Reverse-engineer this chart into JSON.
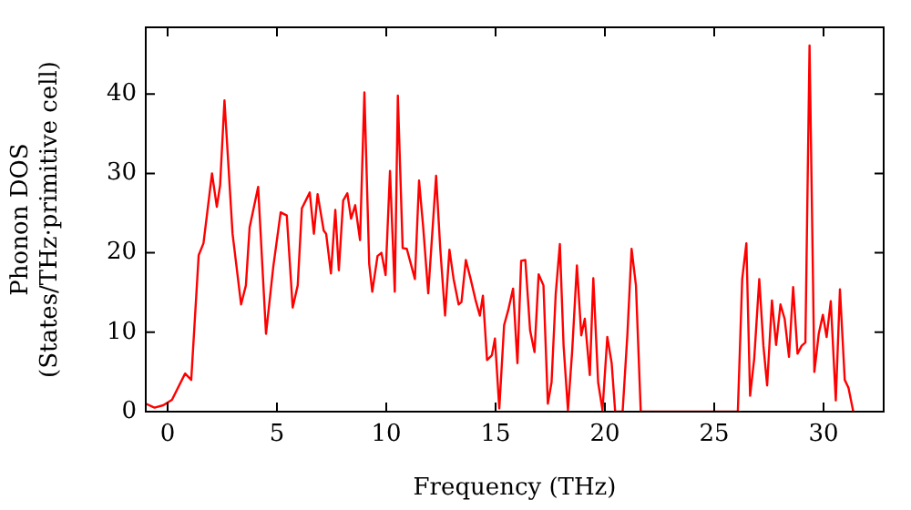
{
  "chart_data": {
    "type": "line",
    "xlabel": "Frequency (THz)",
    "ylabel": "Phonon DOS\n(States/THz·primitive cell)",
    "xlim": [
      -1,
      32.75
    ],
    "ylim": [
      0,
      48.4
    ],
    "xticks": [
      0,
      5,
      10,
      15,
      20,
      25,
      30
    ],
    "yticks": [
      0,
      10,
      20,
      30,
      40
    ],
    "grid": false,
    "legend": false,
    "marker": "none",
    "line_style": "solid",
    "series": [
      {
        "color": "#ff0000",
        "x": [
          -1,
          -0.6,
          -0.2,
          0.2,
          0.8,
          1.08,
          1.42,
          1.64,
          2.03,
          2.25,
          2.4,
          2.6,
          2.97,
          3.36,
          3.58,
          3.75,
          4.14,
          4.5,
          4.83,
          5.17,
          5.45,
          5.72,
          5.95,
          6.14,
          6.5,
          6.69,
          6.86,
          7.14,
          7.25,
          7.47,
          7.67,
          7.83,
          8.03,
          8.22,
          8.39,
          8.58,
          8.8,
          9.0,
          9.22,
          9.36,
          9.6,
          9.78,
          9.97,
          10.17,
          10.39,
          10.53,
          10.75,
          10.94,
          11.31,
          11.5,
          11.69,
          11.92,
          12.28,
          12.47,
          12.69,
          12.89,
          13.08,
          13.31,
          13.44,
          13.64,
          13.86,
          14.08,
          14.28,
          14.42,
          14.61,
          14.83,
          14.97,
          15.17,
          15.39,
          15.58,
          15.8,
          16.0,
          16.17,
          16.36,
          16.58,
          16.78,
          16.97,
          17.19,
          17.39,
          17.56,
          17.75,
          17.94,
          18.11,
          18.31,
          18.5,
          18.72,
          18.92,
          19.08,
          19.31,
          19.47,
          19.69,
          19.89,
          20.11,
          20.31,
          20.47,
          20.81,
          21.03,
          21.22,
          21.42,
          21.64,
          26.08,
          26.28,
          26.47,
          26.64,
          26.83,
          27.06,
          27.25,
          27.42,
          27.64,
          27.83,
          28.03,
          28.22,
          28.42,
          28.61,
          28.81,
          29.0,
          29.17,
          29.36,
          29.58,
          29.78,
          29.97,
          30.14,
          30.33,
          30.56,
          30.75,
          30.97,
          31.14,
          31.36
        ],
        "values": [
          1.0,
          0.5,
          0.8,
          1.5,
          4.8,
          4.0,
          19.7,
          21.2,
          30,
          25.8,
          28.5,
          39.2,
          22.4,
          13.5,
          15.9,
          23.2,
          28.3,
          9.8,
          18.2,
          25.1,
          24.7,
          13.1,
          15.9,
          25.6,
          27.6,
          22.4,
          27.4,
          22.8,
          22.4,
          17.4,
          25.4,
          17.8,
          26.6,
          27.5,
          24.3,
          26,
          21.6,
          40.2,
          18.6,
          15.1,
          19.6,
          20,
          17.2,
          30.3,
          15.1,
          39.8,
          20.6,
          20.5,
          16.7,
          29.1,
          23.2,
          14.9,
          29.7,
          20.5,
          12.1,
          20.4,
          16.7,
          13.5,
          13.8,
          19.1,
          16.7,
          14.1,
          12.1,
          14.6,
          6.5,
          7.1,
          9.2,
          0.4,
          10.9,
          12.8,
          15.5,
          6.1,
          19.0,
          19.1,
          10.2,
          7.5,
          17.3,
          15.9,
          1.0,
          3.7,
          14.8,
          21.1,
          8.3,
          0.2,
          7.5,
          18.4,
          9.6,
          11.7,
          4.6,
          16.8,
          3.7,
          0.2,
          9.4,
          6.1,
          0,
          0,
          9.8,
          20.5,
          15.9,
          0,
          0,
          16.7,
          21.2,
          2.0,
          6.7,
          16.7,
          8.3,
          3.3,
          14.0,
          8.4,
          13.5,
          11.7,
          6.9,
          15.7,
          7.3,
          8.3,
          8.7,
          46.1,
          5.0,
          9.8,
          12.2,
          9.4,
          13.9,
          1.4,
          15.4,
          4.0,
          3.0,
          0
        ]
      }
    ]
  }
}
